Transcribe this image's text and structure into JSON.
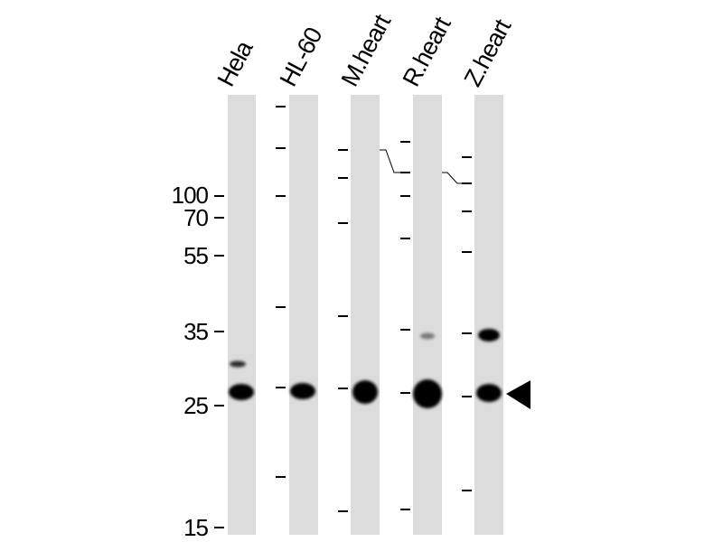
{
  "lanes": [
    {
      "label": "Hela",
      "bands": [
        {
          "mw": 28.5,
          "intensity": 0.6
        },
        {
          "mw": 26.5,
          "intensity": 1.0
        }
      ]
    },
    {
      "label": "HL-60",
      "bands": [
        {
          "mw": 26.5,
          "intensity": 1.0
        }
      ]
    },
    {
      "label": "M.heart",
      "bands": [
        {
          "mw": 26.5,
          "intensity": 1.0
        }
      ]
    },
    {
      "label": "R.heart",
      "bands": [
        {
          "mw": 34,
          "intensity": 0.4
        },
        {
          "mw": 26.5,
          "intensity": 1.0
        }
      ]
    },
    {
      "label": "Z.heart",
      "bands": [
        {
          "mw": 34,
          "intensity": 0.95
        },
        {
          "mw": 26.5,
          "intensity": 1.0
        }
      ]
    }
  ],
  "markers": [
    "100",
    "70",
    "55",
    "35",
    "25",
    "15"
  ],
  "colors": {
    "lane": "#dcdcdc",
    "band": "#000000",
    "background": "#ffffff"
  },
  "arrow_icon": "left-pointing-triangle"
}
